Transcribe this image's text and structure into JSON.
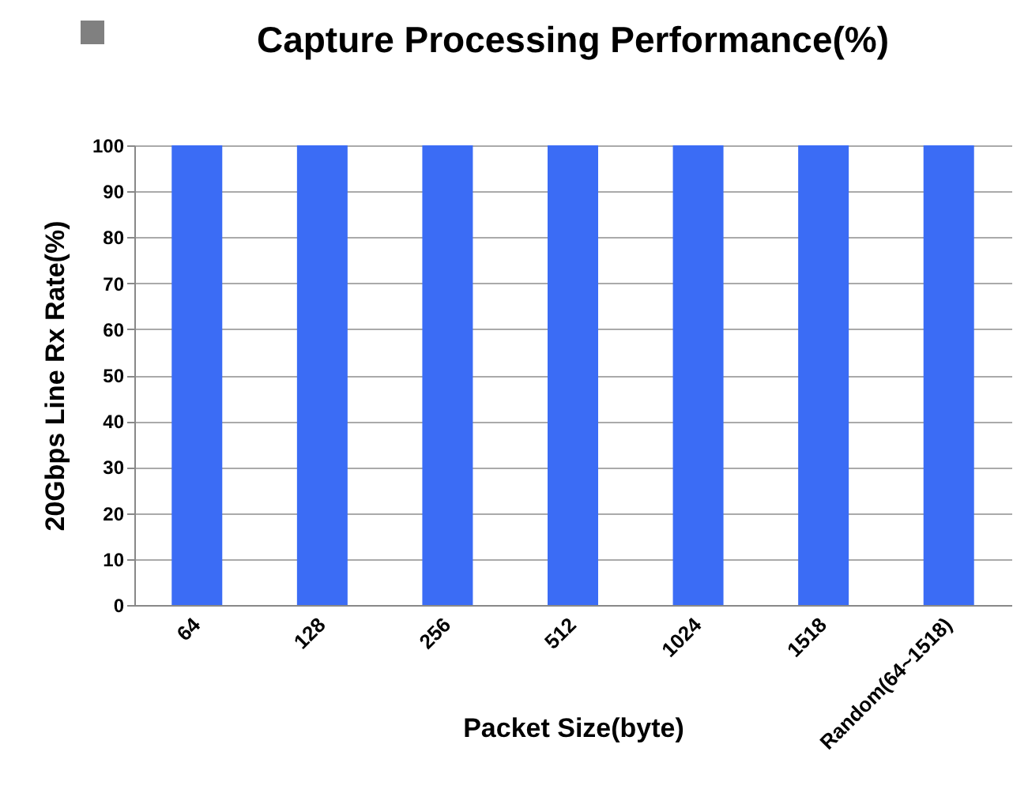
{
  "chart_data": {
    "type": "bar",
    "title": "Capture Processing Performance(%)",
    "xlabel": "Packet Size(byte)",
    "ylabel": "20Gbps Line  Rx Rate(%)",
    "categories": [
      "64",
      "128",
      "256",
      "512",
      "1024",
      "1518",
      "Random(64~1518)"
    ],
    "values": [
      100,
      100,
      100,
      100,
      100,
      100,
      100
    ],
    "color": "#3b6cf5",
    "ylim": [
      0,
      100
    ],
    "yticks": [
      0,
      10,
      20,
      30,
      40,
      50,
      60,
      70,
      80,
      90,
      100
    ],
    "grid": "y"
  }
}
